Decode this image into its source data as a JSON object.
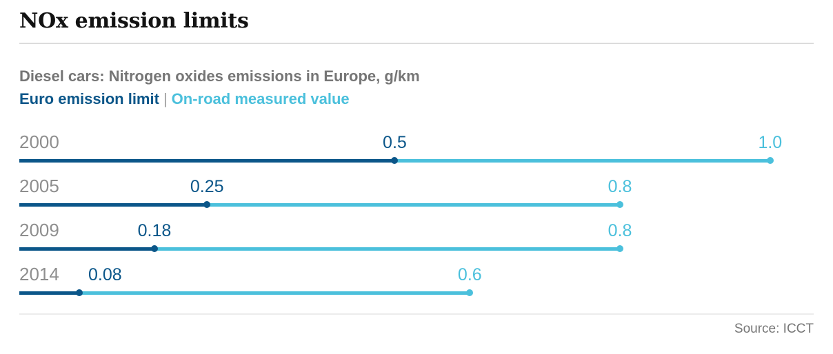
{
  "header": {
    "title": "NOx emission limits"
  },
  "subtitle": "Diesel cars: Nitrogen oxides emissions in Europe, g/km",
  "legend": {
    "limit_label": "Euro emission limit",
    "separator": "|",
    "measured_label": "On-road measured value"
  },
  "source": "Source: ICCT",
  "colors": {
    "limit": "#0b5689",
    "measured": "#4bc0dc",
    "year_label": "#8e8e8e",
    "subtitle_gray": "#767676",
    "title": "#121212",
    "divider": "#dcdcdc"
  },
  "chart_data": {
    "type": "scatter",
    "variant": "dumbbell-dot-plot",
    "title": "NOx emission limits",
    "subtitle": "Diesel cars: Nitrogen oxides emissions in Europe, g/km",
    "unit": "g/km",
    "categories": [
      "2000",
      "2005",
      "2009",
      "2014"
    ],
    "series": [
      {
        "name": "Euro emission limit",
        "color": "#0b5689",
        "values": [
          0.5,
          0.25,
          0.18,
          0.08
        ]
      },
      {
        "name": "On-road measured value",
        "color": "#4bc0dc",
        "values": [
          1.0,
          0.8,
          0.8,
          0.6
        ]
      }
    ],
    "xlim": [
      0,
      1.058
    ],
    "grid": false,
    "legend_position": "top-left-inline",
    "source": "ICCT",
    "rows": [
      {
        "year": "2000",
        "limit": 0.5,
        "limit_label": "0.5",
        "measured": 1.0,
        "measured_label": "1.0"
      },
      {
        "year": "2005",
        "limit": 0.25,
        "limit_label": "0.25",
        "measured": 0.8,
        "measured_label": "0.8"
      },
      {
        "year": "2009",
        "limit": 0.18,
        "limit_label": "0.18",
        "measured": 0.8,
        "measured_label": "0.8"
      },
      {
        "year": "2014",
        "limit": 0.08,
        "limit_label": "0.08",
        "measured": 0.6,
        "measured_label": "0.6"
      }
    ]
  }
}
